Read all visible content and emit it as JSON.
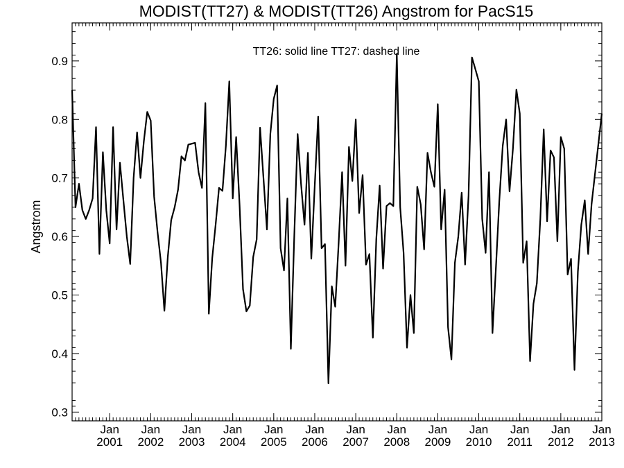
{
  "chart_data": {
    "type": "line",
    "title": "MODIST(TT27) & MODIST(TT26)  Angstrom for PacS15",
    "annotation": "TT26: solid line   TT27: dashed line",
    "xlabel": "",
    "ylabel": "Angstrom",
    "xlim": [
      "2000-02",
      "2013-01"
    ],
    "ylim": [
      0.285,
      0.965
    ],
    "yticks": [
      0.3,
      0.4,
      0.5,
      0.6,
      0.7,
      0.8,
      0.9
    ],
    "ytick_labels": [
      "0.3",
      "0.4",
      "0.5",
      "0.6",
      "0.7",
      "0.8",
      "0.9"
    ],
    "xticks": [
      {
        "date": "2001-01",
        "month": "Jan",
        "year": "2001"
      },
      {
        "date": "2002-01",
        "month": "Jan",
        "year": "2002"
      },
      {
        "date": "2003-01",
        "month": "Jan",
        "year": "2003"
      },
      {
        "date": "2004-01",
        "month": "Jan",
        "year": "2004"
      },
      {
        "date": "2005-01",
        "month": "Jan",
        "year": "2005"
      },
      {
        "date": "2006-01",
        "month": "Jan",
        "year": "2006"
      },
      {
        "date": "2007-01",
        "month": "Jan",
        "year": "2007"
      },
      {
        "date": "2008-01",
        "month": "Jan",
        "year": "2008"
      },
      {
        "date": "2009-01",
        "month": "Jan",
        "year": "2009"
      },
      {
        "date": "2010-01",
        "month": "Jan",
        "year": "2010"
      },
      {
        "date": "2011-01",
        "month": "Jan",
        "year": "2011"
      },
      {
        "date": "2012-01",
        "month": "Jan",
        "year": "2012"
      },
      {
        "date": "2013-01",
        "month": "Jan",
        "year": "2013"
      }
    ],
    "grid": false,
    "series": [
      {
        "name": "TT26",
        "style": "solid",
        "color": "#000000",
        "points": [
          [
            "2000-02",
            0.85
          ],
          [
            "2000-03",
            0.65
          ],
          [
            "2000-04",
            0.69
          ],
          [
            "2000-05",
            0.645
          ],
          [
            "2000-06",
            0.63
          ],
          [
            "2000-07",
            0.645
          ],
          [
            "2000-08",
            0.665
          ],
          [
            "2000-09",
            0.787
          ],
          [
            "2000-10",
            0.57
          ],
          [
            "2000-11",
            0.744
          ],
          [
            "2000-12",
            0.645
          ],
          [
            "2001-01",
            0.588
          ],
          [
            "2001-02",
            0.787
          ],
          [
            "2001-03",
            0.612
          ],
          [
            "2001-04",
            0.726
          ],
          [
            "2001-05",
            0.663
          ],
          [
            "2001-06",
            0.6
          ],
          [
            "2001-07",
            0.553
          ],
          [
            "2001-08",
            0.7
          ],
          [
            "2001-09",
            0.778
          ],
          [
            "2001-10",
            0.7
          ],
          [
            "2001-11",
            0.763
          ],
          [
            "2001-12",
            0.813
          ],
          [
            "2002-01",
            0.798
          ],
          [
            "2002-02",
            0.668
          ],
          [
            "2002-03",
            0.608
          ],
          [
            "2002-04",
            0.555
          ],
          [
            "2002-05",
            0.473
          ],
          [
            "2002-06",
            0.565
          ],
          [
            "2002-07",
            0.628
          ],
          [
            "2002-08",
            0.65
          ],
          [
            "2002-09",
            0.68
          ],
          [
            "2002-10",
            0.737
          ],
          [
            "2002-11",
            0.73
          ],
          [
            "2002-12",
            0.757
          ],
          [
            "2003-02",
            0.76
          ],
          [
            "2003-03",
            0.71
          ],
          [
            "2003-04",
            0.683
          ],
          [
            "2003-05",
            0.828
          ],
          [
            "2003-06",
            0.468
          ],
          [
            "2003-07",
            0.563
          ],
          [
            "2003-08",
            0.62
          ],
          [
            "2003-09",
            0.683
          ],
          [
            "2003-10",
            0.678
          ],
          [
            "2003-11",
            0.755
          ],
          [
            "2003-12",
            0.865
          ],
          [
            "2004-01",
            0.665
          ],
          [
            "2004-02",
            0.77
          ],
          [
            "2004-03",
            0.655
          ],
          [
            "2004-04",
            0.51
          ],
          [
            "2004-05",
            0.472
          ],
          [
            "2004-06",
            0.482
          ],
          [
            "2004-07",
            0.565
          ],
          [
            "2004-08",
            0.595
          ],
          [
            "2004-09",
            0.786
          ],
          [
            "2004-10",
            0.7
          ],
          [
            "2004-11",
            0.612
          ],
          [
            "2004-12",
            0.775
          ],
          [
            "2005-01",
            0.835
          ],
          [
            "2005-02",
            0.858
          ],
          [
            "2005-03",
            0.58
          ],
          [
            "2005-04",
            0.542
          ],
          [
            "2005-05",
            0.665
          ],
          [
            "2005-06",
            0.408
          ],
          [
            "2005-07",
            0.6
          ],
          [
            "2005-08",
            0.775
          ],
          [
            "2005-09",
            0.69
          ],
          [
            "2005-10",
            0.62
          ],
          [
            "2005-11",
            0.743
          ],
          [
            "2005-12",
            0.562
          ],
          [
            "2006-01",
            0.688
          ],
          [
            "2006-02",
            0.805
          ],
          [
            "2006-03",
            0.58
          ],
          [
            "2006-04",
            0.587
          ],
          [
            "2006-05",
            0.349
          ],
          [
            "2006-06",
            0.515
          ],
          [
            "2006-07",
            0.48
          ],
          [
            "2006-08",
            0.59
          ],
          [
            "2006-09",
            0.71
          ],
          [
            "2006-10",
            0.55
          ],
          [
            "2006-11",
            0.753
          ],
          [
            "2006-12",
            0.695
          ],
          [
            "2007-01",
            0.8
          ],
          [
            "2007-02",
            0.64
          ],
          [
            "2007-03",
            0.705
          ],
          [
            "2007-04",
            0.552
          ],
          [
            "2007-05",
            0.57
          ],
          [
            "2007-06",
            0.427
          ],
          [
            "2007-07",
            0.595
          ],
          [
            "2007-08",
            0.687
          ],
          [
            "2007-09",
            0.545
          ],
          [
            "2007-10",
            0.652
          ],
          [
            "2007-11",
            0.657
          ],
          [
            "2007-12",
            0.652
          ],
          [
            "2008-01",
            0.912
          ],
          [
            "2008-02",
            0.65
          ],
          [
            "2008-03",
            0.572
          ],
          [
            "2008-04",
            0.41
          ],
          [
            "2008-05",
            0.5
          ],
          [
            "2008-06",
            0.435
          ],
          [
            "2008-07",
            0.685
          ],
          [
            "2008-08",
            0.655
          ],
          [
            "2008-09",
            0.578
          ],
          [
            "2008-10",
            0.743
          ],
          [
            "2008-11",
            0.71
          ],
          [
            "2008-12",
            0.685
          ],
          [
            "2009-01",
            0.826
          ],
          [
            "2009-02",
            0.612
          ],
          [
            "2009-03",
            0.68
          ],
          [
            "2009-04",
            0.445
          ],
          [
            "2009-05",
            0.39
          ],
          [
            "2009-06",
            0.555
          ],
          [
            "2009-07",
            0.6
          ],
          [
            "2009-08",
            0.675
          ],
          [
            "2009-09",
            0.552
          ],
          [
            "2009-10",
            0.67
          ],
          [
            "2009-11",
            0.906
          ],
          [
            "2009-12",
            0.886
          ],
          [
            "2010-01",
            0.865
          ],
          [
            "2010-02",
            0.63
          ],
          [
            "2010-03",
            0.572
          ],
          [
            "2010-04",
            0.71
          ],
          [
            "2010-05",
            0.435
          ],
          [
            "2010-06",
            0.545
          ],
          [
            "2010-07",
            0.66
          ],
          [
            "2010-08",
            0.755
          ],
          [
            "2010-09",
            0.8
          ],
          [
            "2010-10",
            0.677
          ],
          [
            "2010-11",
            0.75
          ],
          [
            "2010-12",
            0.851
          ],
          [
            "2011-01",
            0.81
          ],
          [
            "2011-02",
            0.555
          ],
          [
            "2011-03",
            0.592
          ],
          [
            "2011-04",
            0.387
          ],
          [
            "2011-05",
            0.485
          ],
          [
            "2011-06",
            0.52
          ],
          [
            "2011-07",
            0.63
          ],
          [
            "2011-08",
            0.783
          ],
          [
            "2011-09",
            0.626
          ],
          [
            "2011-10",
            0.747
          ],
          [
            "2011-11",
            0.735
          ],
          [
            "2011-12",
            0.592
          ],
          [
            "2012-01",
            0.77
          ],
          [
            "2012-02",
            0.75
          ],
          [
            "2012-03",
            0.535
          ],
          [
            "2012-04",
            0.562
          ],
          [
            "2012-05",
            0.372
          ],
          [
            "2012-06",
            0.54
          ],
          [
            "2012-07",
            0.62
          ],
          [
            "2012-08",
            0.662
          ],
          [
            "2012-09",
            0.57
          ],
          [
            "2012-10",
            0.655
          ],
          [
            "2013-01",
            0.81
          ]
        ]
      }
    ]
  }
}
